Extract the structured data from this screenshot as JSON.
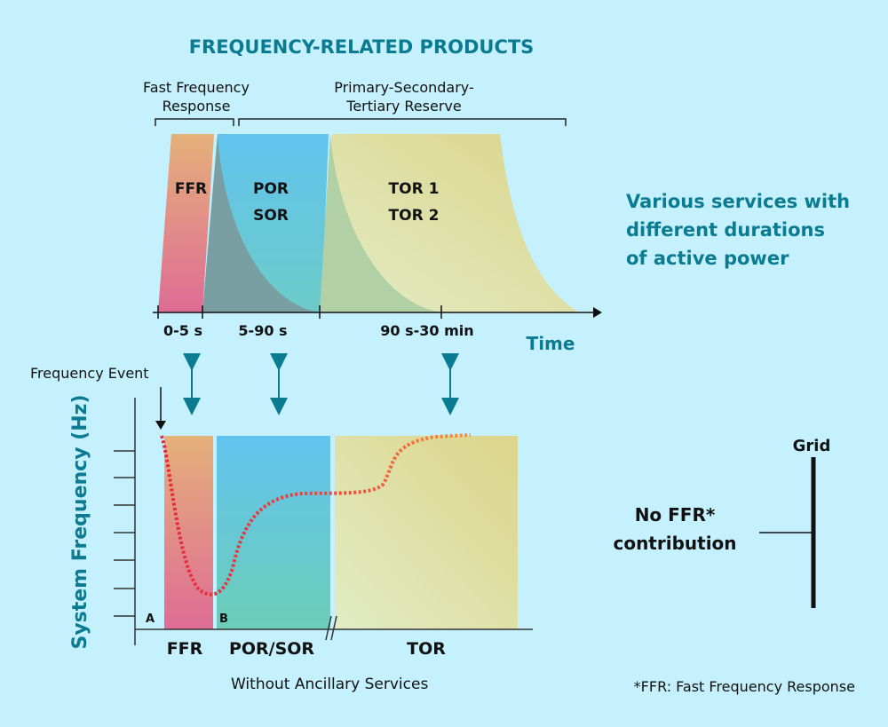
{
  "title": "FREQUENCY-RELATED PRODUCTS",
  "top_chart": {
    "bracket_ffr_label": [
      "Fast Frequency",
      "Response"
    ],
    "bracket_pstr_label": [
      "Primary-Secondary-",
      "Tertiary Reserve"
    ],
    "area_ffr": "FFR",
    "area_por": [
      "POR",
      "SOR"
    ],
    "area_tor": [
      "TOR 1",
      "TOR 2"
    ],
    "time_ranges": [
      "0-5 s",
      "5-90 s",
      "90 s-30 min"
    ],
    "axis_label": "Time"
  },
  "side_note": [
    "Various services with",
    "different durations",
    "of active power"
  ],
  "bottom_chart": {
    "event_label": "Frequency Event",
    "y_label": "System Frequency (Hz)",
    "point_a": "A",
    "point_b": "B",
    "categories": [
      "FFR",
      "POR/SOR",
      "TOR"
    ],
    "legend": "Without Ancillary Services"
  },
  "grid": {
    "label": "Grid",
    "note": [
      "No FFR*",
      "contribution"
    ]
  },
  "footnote": "*FFR: Fast Frequency Response",
  "colors": {
    "accent": "#0a7b91",
    "background": "#c4f1fd",
    "ffr": "#e07a93",
    "por": "#62c4ea",
    "tor": "#dfe3b0",
    "curve_start": "#e8263f",
    "curve_end": "#f7943a"
  }
}
